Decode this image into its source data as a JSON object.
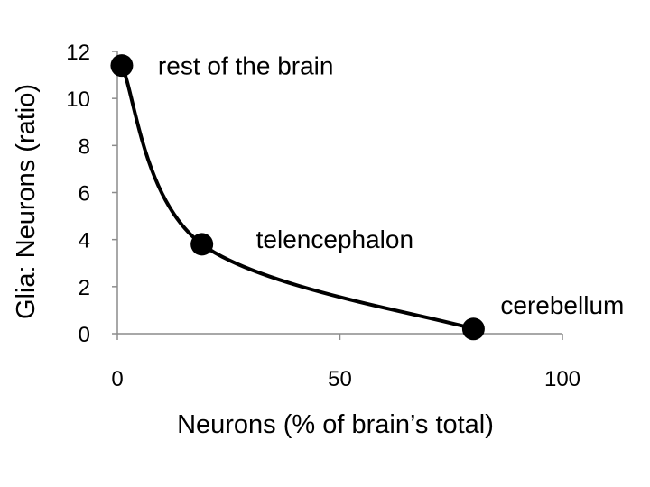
{
  "chart_data": {
    "type": "scatter",
    "title": "",
    "xlabel": "Neurons (% of brain’s total)",
    "ylabel": "Glia: Neurons (ratio)",
    "xlim": [
      0,
      100
    ],
    "ylim": [
      0,
      12
    ],
    "xticks": [
      0,
      50,
      100
    ],
    "yticks": [
      0,
      2,
      4,
      6,
      8,
      10,
      12
    ],
    "grid": false,
    "legend": "none",
    "smooth_line": true,
    "line_color": "#000000",
    "marker_color": "#000000",
    "points": [
      {
        "label": "rest of the brain",
        "x": 1,
        "y": 11.4
      },
      {
        "label": "telencephalon",
        "x": 19,
        "y": 3.8
      },
      {
        "label": "cerebellum",
        "x": 80,
        "y": 0.2
      }
    ]
  }
}
